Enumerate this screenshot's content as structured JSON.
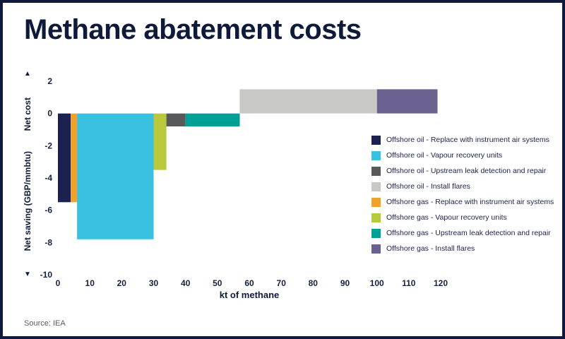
{
  "page": {
    "source": "Source: IEA"
  },
  "icons": {
    "up_arrow": "▲",
    "down_arrow": "▼"
  },
  "chart_data": {
    "type": "bar",
    "subtype": "marginal-abatement-cost-curve",
    "title": "Methane abatement costs",
    "xlabel": "kt of methane",
    "ylabel_top": "Net cost",
    "ylabel_bottom": "Net saving (GBP/mmbtu)",
    "xlim": [
      0,
      120
    ],
    "ylim": [
      -10,
      2
    ],
    "x_ticks": [
      0,
      10,
      20,
      30,
      40,
      50,
      60,
      70,
      80,
      90,
      100,
      110,
      120
    ],
    "y_ticks": [
      2,
      0,
      -2,
      -4,
      -6,
      -8,
      -10
    ],
    "grid": false,
    "legend_position": "right-inside",
    "bars": [
      {
        "label": "Offshore oil - Replace with instrument air systems",
        "color": "#1b2150",
        "x_start": 0,
        "x_end": 4,
        "value": -5.5
      },
      {
        "label": "Offshore gas - Replace with instrument air systems",
        "color": "#f0a32c",
        "x_start": 4,
        "x_end": 6,
        "value": -5.5
      },
      {
        "label": "Offshore oil - Vapour recovery units",
        "color": "#3ac0e0",
        "x_start": 6,
        "x_end": 30,
        "value": -7.8
      },
      {
        "label": "Offshore gas - Vapour recovery units",
        "color": "#b8c93c",
        "x_start": 30,
        "x_end": 34,
        "value": -3.5
      },
      {
        "label": "Offshore oil - Upstream leak detection and repair",
        "color": "#58595b",
        "x_start": 34,
        "x_end": 40,
        "value": -0.8
      },
      {
        "label": "Offshore gas - Upstream leak detection and repair",
        "color": "#00a096",
        "x_start": 40,
        "x_end": 57,
        "value": -0.8
      },
      {
        "label": "Offshore oil - Install flares",
        "color": "#c8c8c6",
        "x_start": 57,
        "x_end": 100,
        "value": 1.5
      },
      {
        "label": "Offshore gas - Install flares",
        "color": "#6a6190",
        "x_start": 100,
        "x_end": 119,
        "value": 1.5
      }
    ],
    "legend": [
      {
        "label": "Offshore oil - Replace with instrument air systems",
        "color": "#1b2150"
      },
      {
        "label": "Offshore oil - Vapour recovery units",
        "color": "#3ac0e0"
      },
      {
        "label": "Offshore oil - Upstream leak detection and repair",
        "color": "#58595b"
      },
      {
        "label": "Offshore oil - Install flares",
        "color": "#c8c8c6"
      },
      {
        "label": "Offshore gas - Replace with instrument air systems",
        "color": "#f0a32c"
      },
      {
        "label": "Offshore gas - Vapour recovery units",
        "color": "#b8c93c"
      },
      {
        "label": "Offshore gas - Upstream leak detection and repair",
        "color": "#00a096"
      },
      {
        "label": "Offshore gas - Install flares",
        "color": "#6a6190"
      }
    ]
  }
}
